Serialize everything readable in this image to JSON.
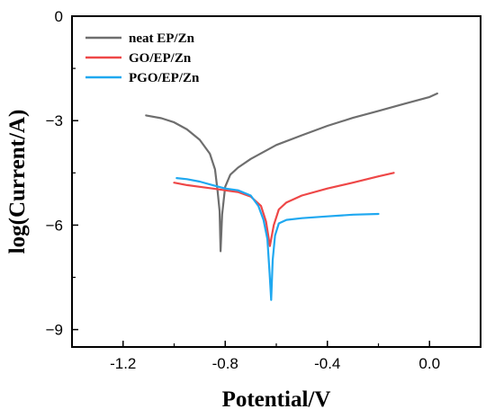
{
  "chart_data": {
    "type": "line",
    "title": "",
    "xlabel": "Potential/V",
    "ylabel": "log(Current/A)",
    "xlim": [
      -1.4,
      0.2
    ],
    "ylim": [
      -9.5,
      0
    ],
    "x_ticks": [
      -1.2,
      -0.8,
      -0.4,
      0.0
    ],
    "x_tick_labels": [
      "-1.2",
      "-0.8",
      "-0.4",
      "0.0"
    ],
    "y_ticks": [
      0,
      -3,
      -6,
      -9
    ],
    "y_tick_labels": [
      "0",
      "-3",
      "-6",
      "-9"
    ],
    "legend_position": "top-left",
    "series": [
      {
        "name": "neat EP/Zn",
        "color": "#6e6e6e",
        "points": [
          [
            -1.11,
            -2.85
          ],
          [
            -1.05,
            -2.93
          ],
          [
            -1.0,
            -3.05
          ],
          [
            -0.95,
            -3.25
          ],
          [
            -0.9,
            -3.55
          ],
          [
            -0.86,
            -3.95
          ],
          [
            -0.84,
            -4.4
          ],
          [
            -0.83,
            -5.0
          ],
          [
            -0.822,
            -5.6
          ],
          [
            -0.818,
            -6.75
          ],
          [
            -0.812,
            -5.7
          ],
          [
            -0.8,
            -4.9
          ],
          [
            -0.78,
            -4.55
          ],
          [
            -0.75,
            -4.35
          ],
          [
            -0.7,
            -4.1
          ],
          [
            -0.6,
            -3.7
          ],
          [
            -0.5,
            -3.42
          ],
          [
            -0.4,
            -3.15
          ],
          [
            -0.3,
            -2.92
          ],
          [
            -0.2,
            -2.72
          ],
          [
            -0.1,
            -2.52
          ],
          [
            0.0,
            -2.32
          ],
          [
            0.03,
            -2.22
          ]
        ]
      },
      {
        "name": "GO/EP/Zn",
        "color": "#ee4747",
        "points": [
          [
            -1.0,
            -4.78
          ],
          [
            -0.95,
            -4.85
          ],
          [
            -0.9,
            -4.9
          ],
          [
            -0.85,
            -4.95
          ],
          [
            -0.8,
            -5.0
          ],
          [
            -0.75,
            -5.05
          ],
          [
            -0.7,
            -5.18
          ],
          [
            -0.66,
            -5.45
          ],
          [
            -0.64,
            -5.9
          ],
          [
            -0.625,
            -6.6
          ],
          [
            -0.61,
            -6.0
          ],
          [
            -0.59,
            -5.55
          ],
          [
            -0.56,
            -5.35
          ],
          [
            -0.5,
            -5.15
          ],
          [
            -0.4,
            -4.95
          ],
          [
            -0.3,
            -4.78
          ],
          [
            -0.2,
            -4.6
          ],
          [
            -0.14,
            -4.5
          ]
        ]
      },
      {
        "name": "PGO/EP/Zn",
        "color": "#1fa8f0",
        "points": [
          [
            -0.99,
            -4.65
          ],
          [
            -0.95,
            -4.68
          ],
          [
            -0.9,
            -4.75
          ],
          [
            -0.85,
            -4.85
          ],
          [
            -0.8,
            -4.95
          ],
          [
            -0.75,
            -5.0
          ],
          [
            -0.7,
            -5.15
          ],
          [
            -0.67,
            -5.45
          ],
          [
            -0.65,
            -5.85
          ],
          [
            -0.635,
            -6.4
          ],
          [
            -0.626,
            -7.4
          ],
          [
            -0.62,
            -8.15
          ],
          [
            -0.614,
            -7.0
          ],
          [
            -0.605,
            -6.3
          ],
          [
            -0.59,
            -5.95
          ],
          [
            -0.56,
            -5.85
          ],
          [
            -0.5,
            -5.8
          ],
          [
            -0.4,
            -5.75
          ],
          [
            -0.3,
            -5.7
          ],
          [
            -0.2,
            -5.68
          ]
        ]
      }
    ]
  }
}
